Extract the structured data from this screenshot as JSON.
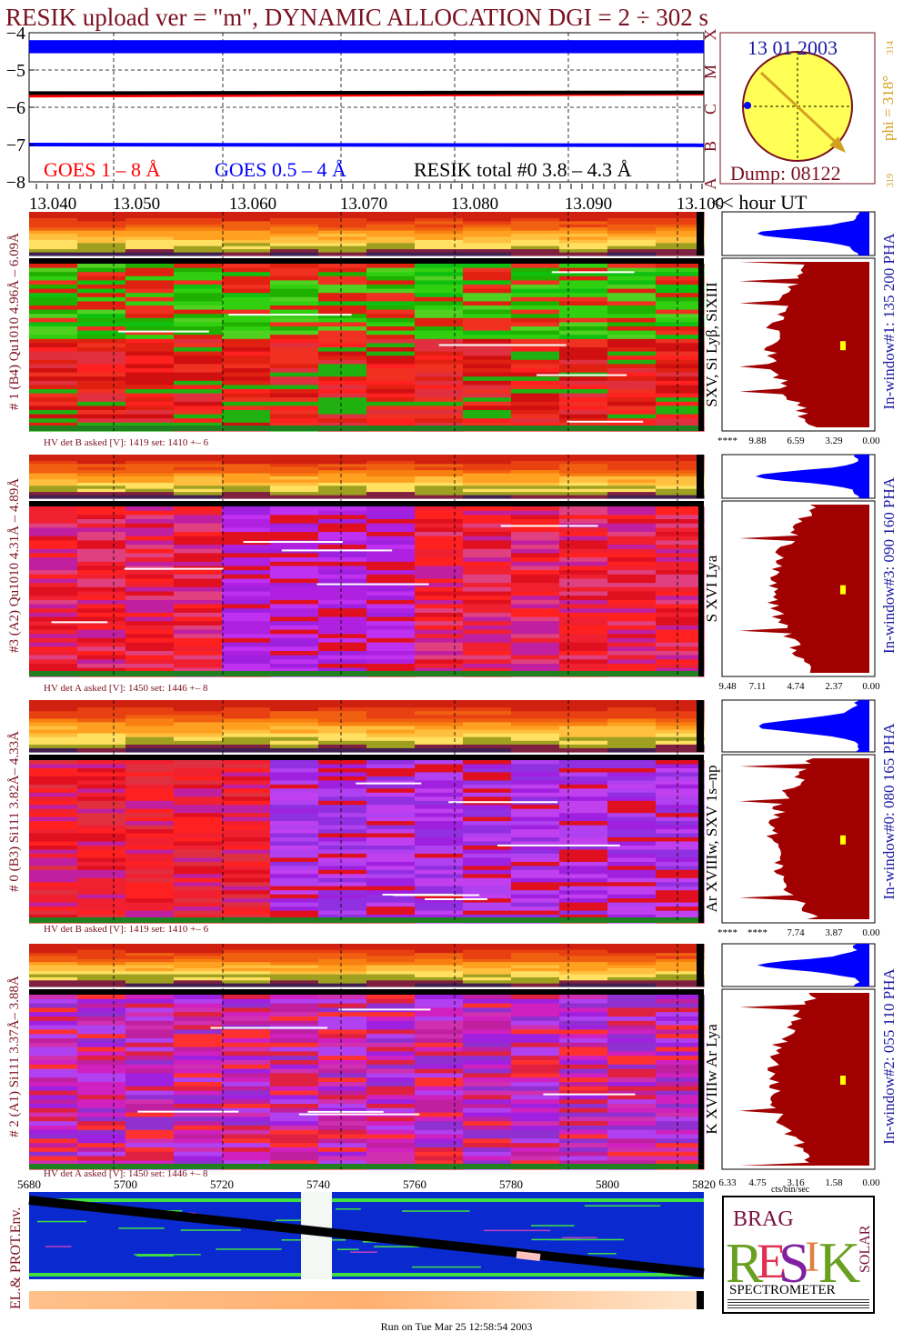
{
  "header": {
    "title": "RESIK upload ver = \"m\", DYNAMIC ALLOCATION  DGI =   2 ÷ 302 s"
  },
  "goes": {
    "yticks": [
      "−4",
      "−5",
      "−6",
      "−7",
      "−8"
    ],
    "class_letters": [
      "X",
      "M",
      "C",
      "B",
      "A"
    ],
    "legend": {
      "goes18": "GOES 1 – 8 Å",
      "goes054": "GOES 0.5 – 4 Å",
      "resik": "RESIK total #0  3.8 – 4.3 Å"
    }
  },
  "sun": {
    "date": "13 01 2003",
    "dump": "Dump: 08122",
    "phi": "phi = 318°",
    "phi_small1": "314",
    "phi_small2": "319"
  },
  "time_axis": {
    "labels": [
      "13.040",
      "13.050",
      "13.060",
      "13.070",
      "13.080",
      "13.090",
      "13.100"
    ],
    "unit": "<< hour UT"
  },
  "panels": [
    {
      "left_label": "# 1 (B4) Qu1010  4.96Å – 6.09Å",
      "line_label": "SXV, Si Lyβ, SiXIII",
      "window_label": "In-window#1:  135 200 PHA",
      "hv_label": "HV det B asked [V]:  1419 set:  1410  +–    6",
      "axis": [
        "****",
        "9.88",
        "6.59",
        "3.29",
        "0.00"
      ]
    },
    {
      "left_label": "#3 (A2) Qu1010  4.31Å – 4.89Å",
      "line_label": "S XVI Lya",
      "window_label": "In-window#3:  090 160 PHA",
      "hv_label": "HV det A asked [V]:  1450 set:  1446  +–    8",
      "axis": [
        "9.48",
        "7.11",
        "4.74",
        "2.37",
        "0.00"
      ]
    },
    {
      "left_label": "# 0 (B3) Si111  3.82Å– 4.33Å",
      "line_label": "Ar XVIIIw, SXV 1s–np",
      "window_label": "In-window#0:  080 165 PHA",
      "hv_label": "HV det B asked [V]:  1419 set:  1410  +–    6",
      "axis": [
        "****",
        "****",
        "7.74",
        "3.87",
        "0.00"
      ]
    },
    {
      "left_label": "# 2 (A1) Si111  3.37Å– 3.88Å",
      "line_label": "K XVIIIw  Ar Lya",
      "window_label": "In-window#2:  055 110 PHA",
      "hv_label": "HV det A asked [V]:  1450 set:  1446  +–    8",
      "axis": [
        "6.33",
        "4.75",
        "3.16",
        "1.58",
        "0.00"
      ]
    }
  ],
  "cts_unit": "cts/bin/sec",
  "orbit": {
    "xlabels": [
      "5680",
      "5700",
      "5720",
      "5740",
      "5760",
      "5780",
      "5800",
      "5820"
    ],
    "ylabel": "EL.& PROT.Env."
  },
  "logo": {
    "letters": "RESIK",
    "top": "BRAG",
    "side": "SOLAR",
    "bottom": "SPECTROMETER"
  },
  "footer": "Run on Tue Mar 25 12:58:54 2003",
  "colors": {
    "goes18": "#ff0000",
    "goes054": "#0000ff",
    "resik": "#000000",
    "title": "#7a1020",
    "label": "#7a1020",
    "window": "#1a1aa0",
    "hist_red": "#a00000",
    "hist_blue": "#0000ff",
    "sun": "#ffff55",
    "phi": "#d4a020"
  },
  "chart_data": [
    {
      "type": "line",
      "title": "",
      "xlabel": "<< hour UT",
      "ylabel": "",
      "x": [
        13.04,
        13.1
      ],
      "ylim": [
        -8,
        -4
      ],
      "series": [
        {
          "name": "GOES 1 – 8 Å",
          "x": [
            13.04,
            13.1
          ],
          "values": [
            -5.7,
            -5.65
          ]
        },
        {
          "name": "GOES 0.5 – 4 Å",
          "x": [
            13.04,
            13.1
          ],
          "values": [
            -7.0,
            -7.02
          ]
        },
        {
          "name": "RESIK total #0  3.8 – 4.3 Å",
          "x": [
            13.04,
            13.1
          ],
          "values": [
            -5.62,
            -5.6
          ]
        }
      ]
    },
    {
      "type": "heatmap",
      "title": "",
      "xlabel": "<< hour UT",
      "xlim": [
        13.04,
        13.1
      ],
      "panels": [
        "# 1 (B4) Qu1010  4.96Å – 6.09Å",
        "#3 (A2) Qu1010  4.31Å – 4.89Å",
        "# 0 (B3) Si111  3.82Å– 4.33Å",
        "# 2 (A1) Si111  3.37Å– 3.88Å"
      ]
    },
    {
      "type": "line",
      "title": "",
      "xlabel": "",
      "ylabel": "EL.& PROT.Env.",
      "xlim": [
        5680,
        5820
      ],
      "series": [
        {
          "name": "",
          "x": [
            5680,
            5820
          ],
          "values": [
            1.0,
            0.0
          ]
        }
      ]
    }
  ]
}
